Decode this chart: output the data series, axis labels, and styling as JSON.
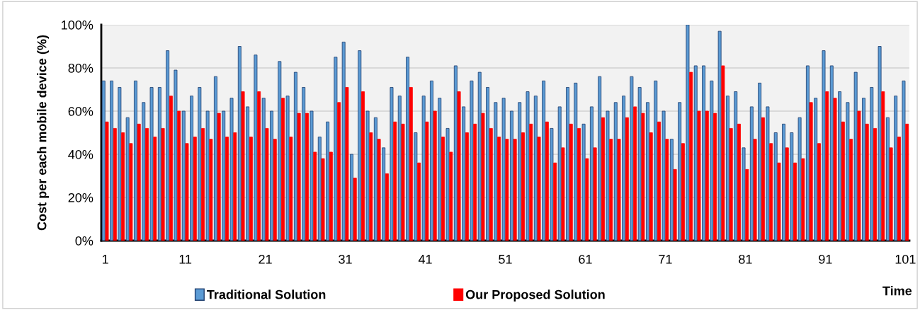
{
  "chart_data": {
    "type": "bar",
    "xlabel": "Time",
    "ylabel": "Cost per each mobile device (%)",
    "x": [
      1,
      2,
      3,
      4,
      5,
      6,
      7,
      8,
      9,
      10,
      11,
      12,
      13,
      14,
      15,
      16,
      17,
      18,
      19,
      20,
      21,
      22,
      23,
      24,
      25,
      26,
      27,
      28,
      29,
      30,
      31,
      32,
      33,
      34,
      35,
      36,
      37,
      38,
      39,
      40,
      41,
      42,
      43,
      44,
      45,
      46,
      47,
      48,
      49,
      50,
      51,
      52,
      53,
      54,
      55,
      56,
      57,
      58,
      59,
      60,
      61,
      62,
      63,
      64,
      65,
      66,
      67,
      68,
      69,
      70,
      71,
      72,
      73,
      74,
      75,
      76,
      77,
      78,
      79,
      80,
      81,
      82,
      83,
      84,
      85,
      86,
      87,
      88,
      89,
      90,
      91,
      92,
      93,
      94,
      95,
      96,
      97,
      98,
      99,
      100,
      101
    ],
    "series": [
      {
        "name": "Traditional Solution",
        "color": "#5b9bd5",
        "values": [
          74,
          74,
          71,
          57,
          74,
          64,
          71,
          71,
          88,
          79,
          60,
          67,
          71,
          60,
          76,
          60,
          66,
          90,
          62,
          86,
          66,
          60,
          83,
          67,
          78,
          71,
          60,
          48,
          55,
          85,
          92,
          40,
          88,
          60,
          57,
          43,
          71,
          67,
          85,
          50,
          67,
          74,
          66,
          52,
          81,
          62,
          74,
          78,
          71,
          64,
          66,
          60,
          64,
          69,
          67,
          74,
          52,
          62,
          71,
          73,
          54,
          62,
          76,
          60,
          64,
          67,
          76,
          71,
          64,
          74,
          60,
          47,
          64,
          100,
          81,
          81,
          74,
          97,
          67,
          69,
          43,
          62,
          73,
          62,
          50,
          54,
          50,
          57,
          81,
          66,
          88,
          81,
          69,
          64,
          78,
          66,
          71,
          90,
          57,
          67,
          74
        ]
      },
      {
        "name": "Our Proposed Solution",
        "color": "#ff0000",
        "values": [
          55,
          52,
          50,
          45,
          54,
          52,
          48,
          52,
          67,
          60,
          45,
          48,
          52,
          47,
          59,
          48,
          50,
          69,
          48,
          69,
          52,
          47,
          66,
          48,
          59,
          59,
          41,
          38,
          41,
          64,
          71,
          29,
          69,
          50,
          47,
          31,
          55,
          54,
          71,
          36,
          55,
          60,
          48,
          41,
          69,
          50,
          54,
          59,
          52,
          48,
          47,
          47,
          50,
          54,
          48,
          55,
          36,
          43,
          54,
          52,
          38,
          43,
          57,
          47,
          47,
          57,
          62,
          59,
          50,
          55,
          47,
          33,
          45,
          78,
          60,
          60,
          59,
          81,
          52,
          54,
          33,
          47,
          57,
          45,
          36,
          43,
          36,
          38,
          64,
          45,
          69,
          66,
          55,
          47,
          60,
          54,
          52,
          69,
          43,
          48,
          54
        ]
      }
    ],
    "xlim": [
      0.5,
      101.5
    ],
    "xticks": [
      1,
      11,
      21,
      31,
      41,
      51,
      61,
      71,
      81,
      91,
      101
    ],
    "ylim": [
      0,
      100
    ],
    "yticks": [
      {
        "value": 0,
        "label": "0%"
      },
      {
        "value": 20,
        "label": "20%"
      },
      {
        "value": 40,
        "label": "40%"
      },
      {
        "value": 60,
        "label": "60%"
      },
      {
        "value": 80,
        "label": "80%"
      },
      {
        "value": 100,
        "label": "100%"
      }
    ],
    "grid": "y",
    "legend": "bottom"
  }
}
